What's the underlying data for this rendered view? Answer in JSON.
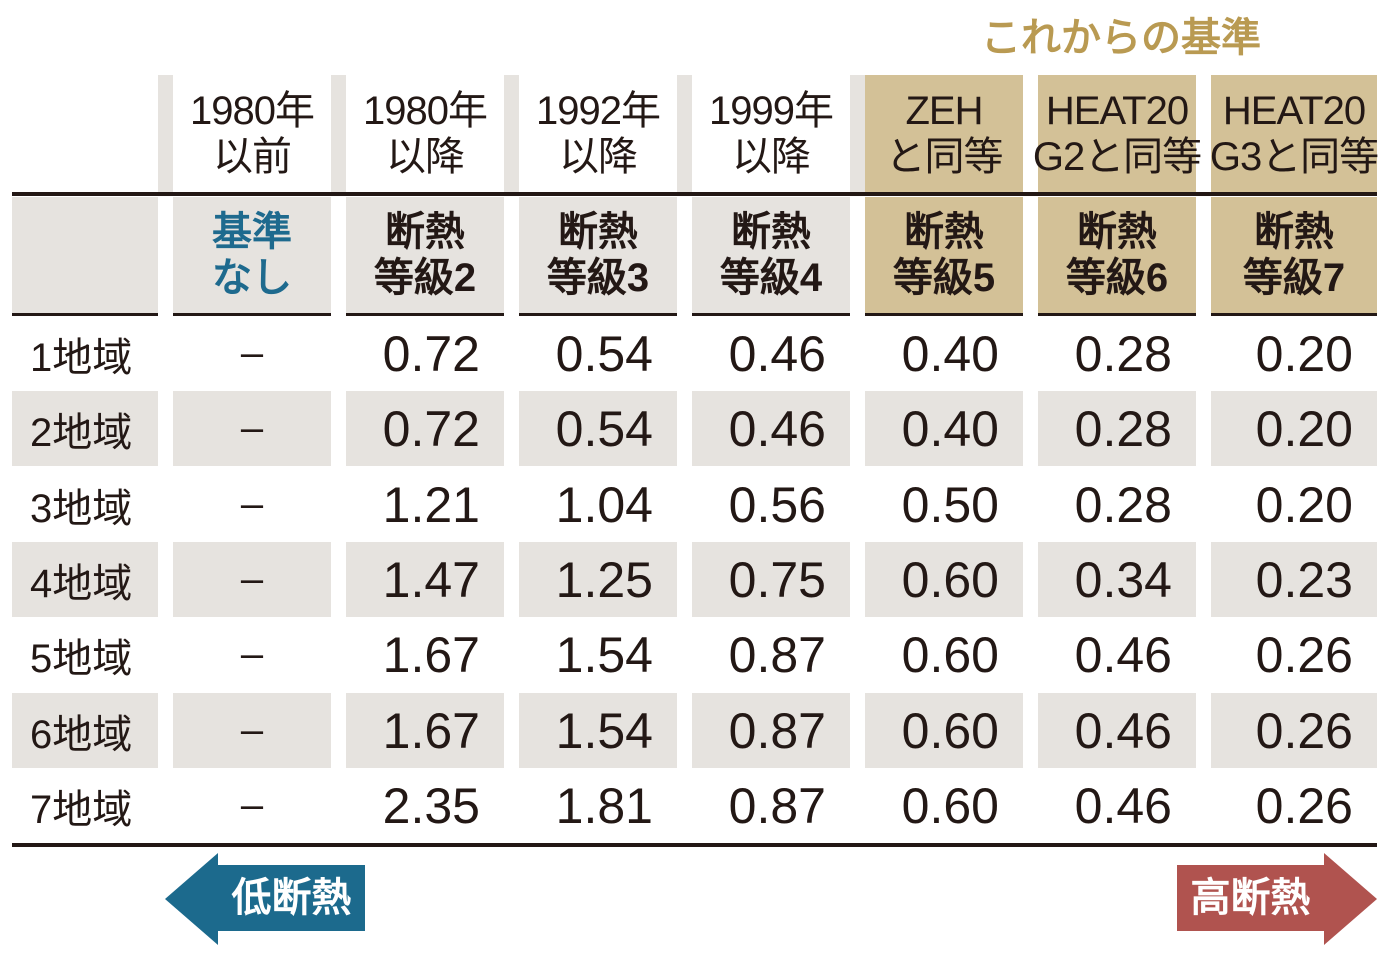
{
  "future_title": "これからの基準",
  "columns": [
    {
      "era": [
        "1980年",
        "以前"
      ],
      "grade": [
        "基準",
        "なし"
      ],
      "future": false,
      "grade_color": "#1e6a8e"
    },
    {
      "era": [
        "1980年",
        "以降"
      ],
      "grade": [
        "断熱",
        "等級2"
      ],
      "future": false
    },
    {
      "era": [
        "1992年",
        "以降"
      ],
      "grade": [
        "断熱",
        "等級3"
      ],
      "future": false
    },
    {
      "era": [
        "1999年",
        "以降"
      ],
      "grade": [
        "断熱",
        "等級4"
      ],
      "future": false
    },
    {
      "era": [
        "ZEH",
        "と同等"
      ],
      "grade": [
        "断熱",
        "等級5"
      ],
      "future": true
    },
    {
      "era": [
        "HEAT20",
        "G2と同等"
      ],
      "grade": [
        "断熱",
        "等級6"
      ],
      "future": true
    },
    {
      "era": [
        "HEAT20",
        "G3と同等"
      ],
      "grade": [
        "断熱",
        "等級7"
      ],
      "future": true
    }
  ],
  "rows": [
    {
      "region": "1地域",
      "values": [
        "–",
        "0.72",
        "0.54",
        "0.46",
        "0.40",
        "0.28",
        "0.20"
      ]
    },
    {
      "region": "2地域",
      "values": [
        "–",
        "0.72",
        "0.54",
        "0.46",
        "0.40",
        "0.28",
        "0.20"
      ]
    },
    {
      "region": "3地域",
      "values": [
        "–",
        "1.21",
        "1.04",
        "0.56",
        "0.50",
        "0.28",
        "0.20"
      ]
    },
    {
      "region": "4地域",
      "values": [
        "–",
        "1.47",
        "1.25",
        "0.75",
        "0.60",
        "0.34",
        "0.23"
      ]
    },
    {
      "region": "5地域",
      "values": [
        "–",
        "1.67",
        "1.54",
        "0.87",
        "0.60",
        "0.46",
        "0.26"
      ]
    },
    {
      "region": "6地域",
      "values": [
        "–",
        "1.67",
        "1.54",
        "0.87",
        "0.60",
        "0.46",
        "0.26"
      ]
    },
    {
      "region": "7地域",
      "values": [
        "–",
        "2.35",
        "1.81",
        "0.87",
        "0.60",
        "0.46",
        "0.26"
      ]
    }
  ],
  "arrows": {
    "low": {
      "label": "低断熱",
      "color": "#1c6a8d"
    },
    "high": {
      "label": "高断熱",
      "color": "#b0534f"
    }
  },
  "colors": {
    "gray": "#e6e3df",
    "tan": "#d3c197",
    "gold": "#b99a52"
  }
}
